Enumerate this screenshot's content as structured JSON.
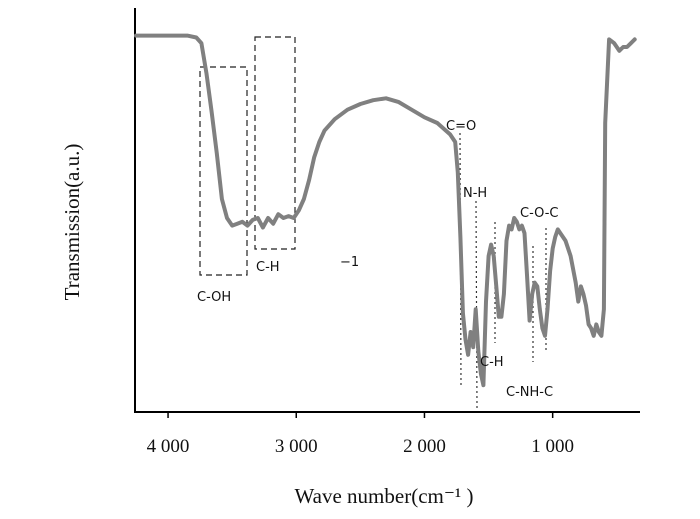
{
  "chart_data": {
    "type": "line",
    "title": "",
    "xlabel": "Wave number(cm⁻¹ )",
    "ylabel": "Transmission(a.u.)",
    "x_reversed": true,
    "xlim": [
      4250,
      350
    ],
    "ylim": [
      0,
      100
    ],
    "x_ticks": [
      {
        "value": 4000,
        "label": "4 000"
      },
      {
        "value": 3000,
        "label": "3 000"
      },
      {
        "value": 2000,
        "label": "2 000"
      },
      {
        "value": 1000,
        "label": "1 000"
      }
    ],
    "grid": false,
    "legend": "none",
    "series": [
      {
        "color": "#808080",
        "x": [
          4250,
          3850,
          3780,
          3740,
          3700,
          3660,
          3620,
          3580,
          3540,
          3500,
          3460,
          3420,
          3380,
          3340,
          3300,
          3260,
          3220,
          3180,
          3140,
          3100,
          3060,
          3020,
          2980,
          2940,
          2900,
          2860,
          2820,
          2780,
          2700,
          2600,
          2500,
          2400,
          2300,
          2200,
          2100,
          2000,
          1900,
          1800,
          1760,
          1740,
          1720,
          1700,
          1680,
          1660,
          1640,
          1620,
          1600,
          1580,
          1560,
          1540,
          1520,
          1500,
          1480,
          1460,
          1440,
          1420,
          1400,
          1380,
          1360,
          1340,
          1320,
          1300,
          1280,
          1260,
          1240,
          1220,
          1200,
          1180,
          1160,
          1140,
          1120,
          1100,
          1080,
          1060,
          1040,
          1020,
          1000,
          980,
          960,
          940,
          900,
          860,
          820,
          800,
          780,
          760,
          740,
          720,
          700,
          680,
          660,
          640,
          620,
          600,
          590,
          560,
          520,
          480,
          450,
          420,
          390,
          360
        ],
        "y": [
          98,
          98,
          97.5,
          96,
          88,
          78,
          67,
          55,
          50,
          48,
          48.5,
          49,
          48,
          49.5,
          50,
          47.5,
          50,
          48.5,
          51,
          50,
          50.5,
          50,
          52,
          55,
          60,
          66,
          70,
          73,
          76,
          78.5,
          80,
          81,
          81.5,
          80.5,
          78.5,
          76.5,
          75,
          72,
          70,
          62,
          45,
          25,
          18,
          14,
          20,
          16,
          26,
          15,
          9,
          6,
          28,
          40,
          43,
          40,
          32,
          24,
          24,
          30,
          44,
          48,
          47,
          50,
          49,
          47,
          48,
          46,
          35,
          23,
          30,
          33,
          32,
          26,
          21,
          19,
          26,
          36,
          42,
          45,
          47,
          46,
          44,
          40,
          33,
          28,
          32,
          30,
          27,
          22,
          21,
          19,
          22,
          20,
          19,
          26,
          75,
          97,
          96,
          94,
          95,
          95,
          96,
          97
        ]
      }
    ],
    "annotations": [
      {
        "label": "C-OH"
      },
      {
        "label": "C-H",
        "id": "ch1"
      },
      {
        "label": "−1"
      },
      {
        "label": "C=O"
      },
      {
        "label": "N-H"
      },
      {
        "label": "C-H",
        "id": "ch2"
      },
      {
        "label": "C-O-C"
      },
      {
        "label": "C-NH-C"
      }
    ]
  }
}
